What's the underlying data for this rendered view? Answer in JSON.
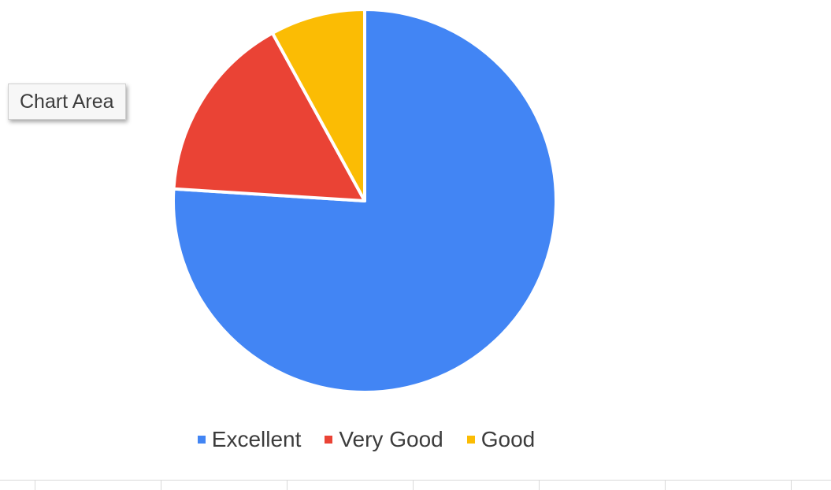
{
  "tooltip": {
    "label": "Chart Area"
  },
  "chart_data": {
    "type": "pie",
    "title": "",
    "slices": [
      {
        "label": "Excellent",
        "value": 76,
        "color": "#4285f4"
      },
      {
        "label": "Very Good",
        "value": 16,
        "color": "#ea4335"
      },
      {
        "label": "Good",
        "value": 8,
        "color": "#fbbc04"
      }
    ],
    "start_angle": "12 o'clock, clockwise",
    "legend_position": "bottom"
  },
  "legend": {
    "items": [
      {
        "label": "Excellent",
        "color": "#4285f4"
      },
      {
        "label": "Very Good",
        "color": "#ea4335"
      },
      {
        "label": "Good",
        "color": "#fbbc04"
      }
    ]
  }
}
